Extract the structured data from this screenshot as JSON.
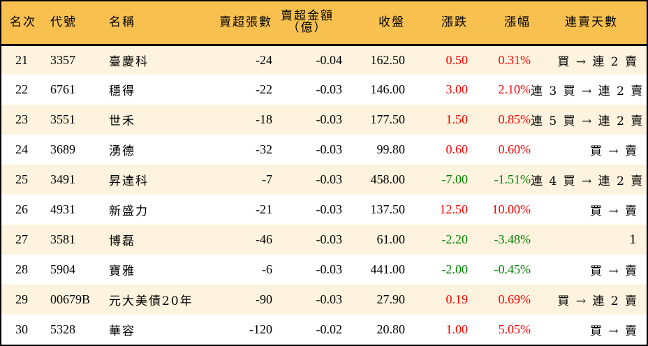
{
  "table": {
    "headers": {
      "rank": "名次",
      "code": "代號",
      "name": "名稱",
      "net_sell_volume": "賣超張數",
      "net_sell_amount": "賣超金額",
      "net_sell_amount_unit": "（億）",
      "close": "收盤",
      "change": "漲跌",
      "change_pct": "漲幅",
      "streak": "連賣天數"
    },
    "colors": {
      "header_bg": "#f8c04f",
      "row_alt_bg": "#fdf3de",
      "up": "#ff0000",
      "down": "#008000"
    },
    "rows": [
      {
        "rank": "21",
        "code": "3357",
        "name": "臺慶科",
        "volume": "-24",
        "amount": "-0.04",
        "close": "162.50",
        "change": "0.50",
        "pct": "0.31%",
        "direction": "up",
        "streak": "買 → 連 2 賣"
      },
      {
        "rank": "22",
        "code": "6761",
        "name": "穩得",
        "volume": "-22",
        "amount": "-0.03",
        "close": "146.00",
        "change": "3.00",
        "pct": "2.10%",
        "direction": "up",
        "streak": "連 3 買 → 連 2 賣"
      },
      {
        "rank": "23",
        "code": "3551",
        "name": "世禾",
        "volume": "-18",
        "amount": "-0.03",
        "close": "177.50",
        "change": "1.50",
        "pct": "0.85%",
        "direction": "up",
        "streak": "連 5 買 → 連 2 賣"
      },
      {
        "rank": "24",
        "code": "3689",
        "name": "湧德",
        "volume": "-32",
        "amount": "-0.03",
        "close": "99.80",
        "change": "0.60",
        "pct": "0.60%",
        "direction": "up",
        "streak": "買 → 賣"
      },
      {
        "rank": "25",
        "code": "3491",
        "name": "昇達科",
        "volume": "-7",
        "amount": "-0.03",
        "close": "458.00",
        "change": "-7.00",
        "pct": "-1.51%",
        "direction": "down",
        "streak": "連 4 買 → 連 2 賣"
      },
      {
        "rank": "26",
        "code": "4931",
        "name": "新盛力",
        "volume": "-21",
        "amount": "-0.03",
        "close": "137.50",
        "change": "12.50",
        "pct": "10.00%",
        "direction": "up",
        "streak": "買 → 賣"
      },
      {
        "rank": "27",
        "code": "3581",
        "name": "博磊",
        "volume": "-46",
        "amount": "-0.03",
        "close": "61.00",
        "change": "-2.20",
        "pct": "-3.48%",
        "direction": "down",
        "streak": "1"
      },
      {
        "rank": "28",
        "code": "5904",
        "name": "寶雅",
        "volume": "-6",
        "amount": "-0.03",
        "close": "441.00",
        "change": "-2.00",
        "pct": "-0.45%",
        "direction": "down",
        "streak": "買 → 賣"
      },
      {
        "rank": "29",
        "code": "00679B",
        "name": "元大美債20年",
        "volume": "-90",
        "amount": "-0.03",
        "close": "27.90",
        "change": "0.19",
        "pct": "0.69%",
        "direction": "up",
        "streak": "買 → 連 2 賣"
      },
      {
        "rank": "30",
        "code": "5328",
        "name": "華容",
        "volume": "-120",
        "amount": "-0.02",
        "close": "20.80",
        "change": "1.00",
        "pct": "5.05%",
        "direction": "up",
        "streak": "買 → 賣"
      }
    ]
  }
}
